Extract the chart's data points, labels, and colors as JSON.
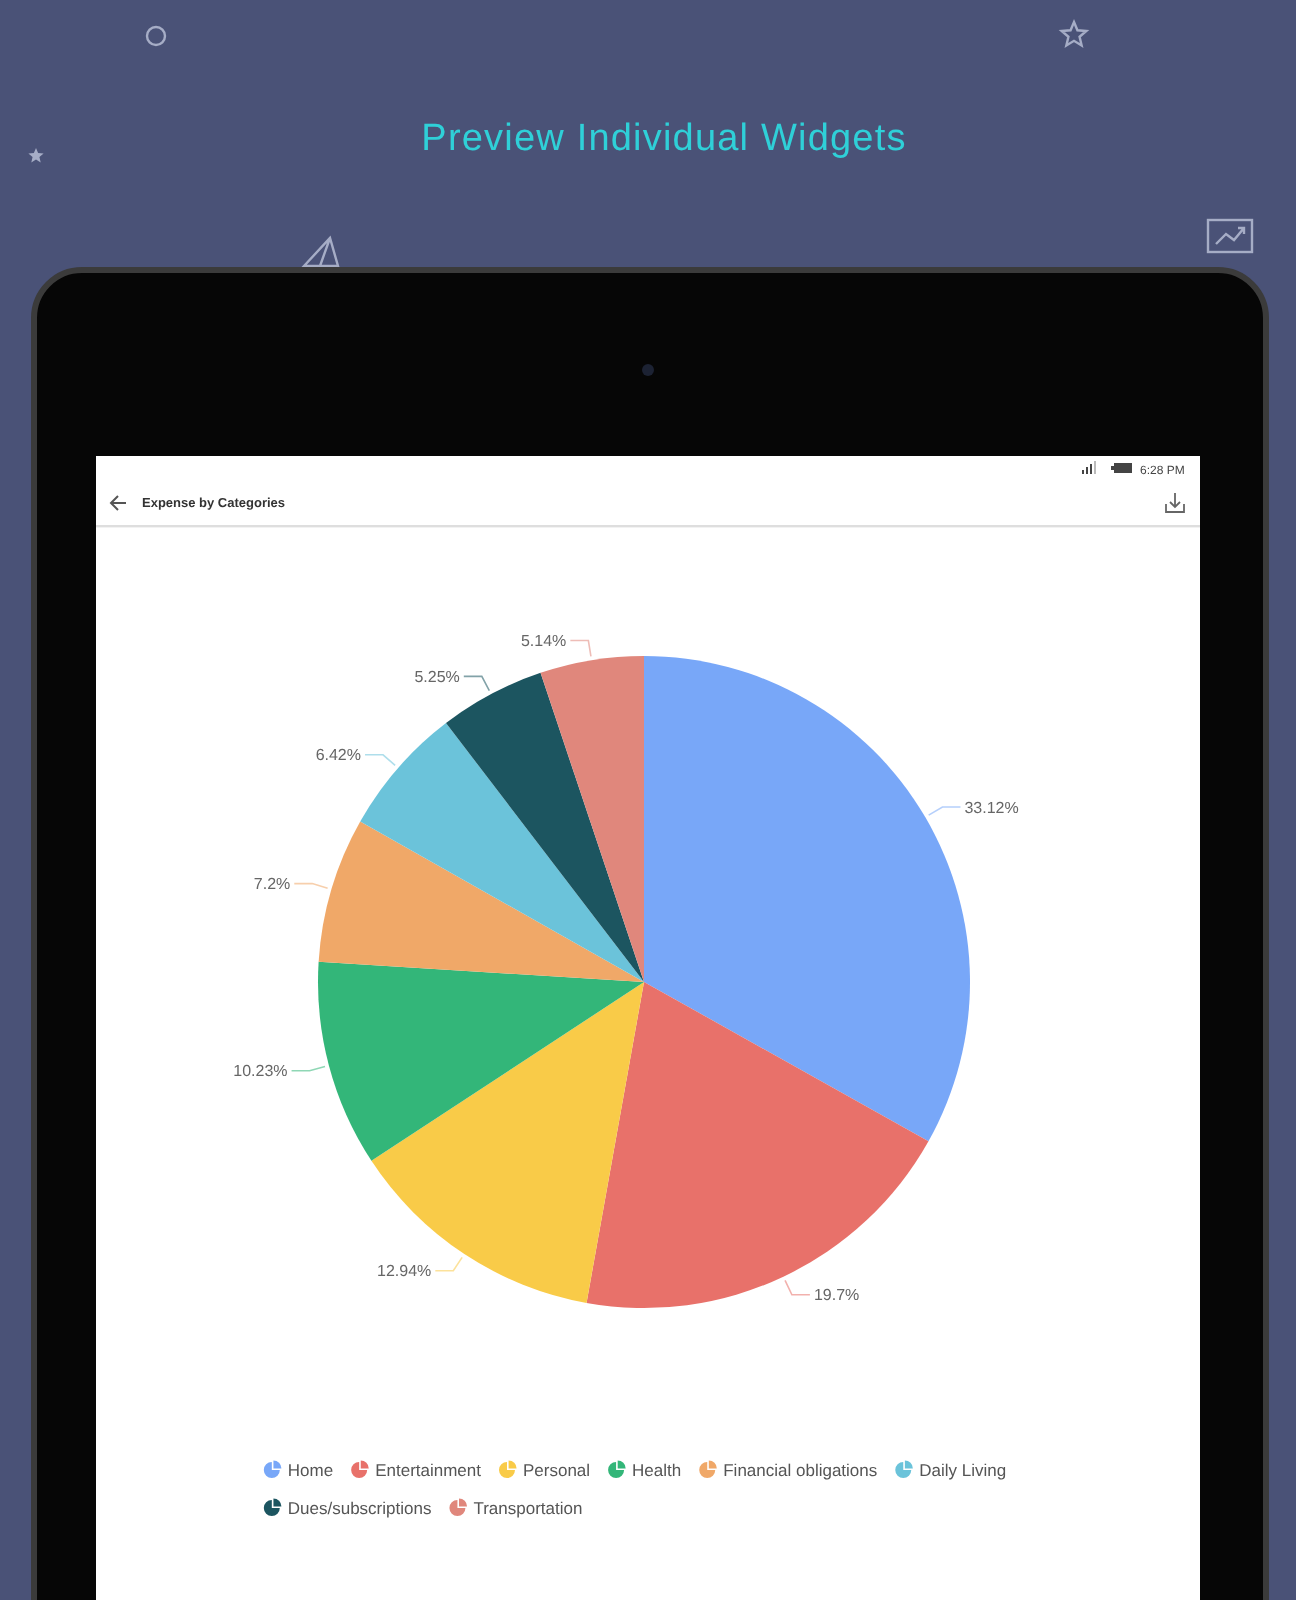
{
  "chart_data": {
    "type": "pie",
    "title": "Expense by Categories",
    "categories": [
      "Home",
      "Entertainment",
      "Personal",
      "Health",
      "Financial obligations",
      "Daily Living",
      "Dues/subscriptions",
      "Transportation"
    ],
    "values": [
      33.12,
      19.7,
      12.94,
      10.23,
      7.2,
      6.42,
      5.25,
      5.14
    ],
    "colors": [
      "#78a7f8",
      "#e8716a",
      "#f9cb48",
      "#33b679",
      "#f0a868",
      "#6bc3da",
      "#1c5560",
      "#e0877c"
    ],
    "value_labels": [
      "33.12%",
      "19.7%",
      "12.94%",
      "10.23%",
      "7.2%",
      "6.42%",
      "5.25%",
      "5.14%"
    ],
    "legend": "bottom",
    "annotations": [
      "Preview Individual Widgets",
      "6:28 PM"
    ]
  }
}
